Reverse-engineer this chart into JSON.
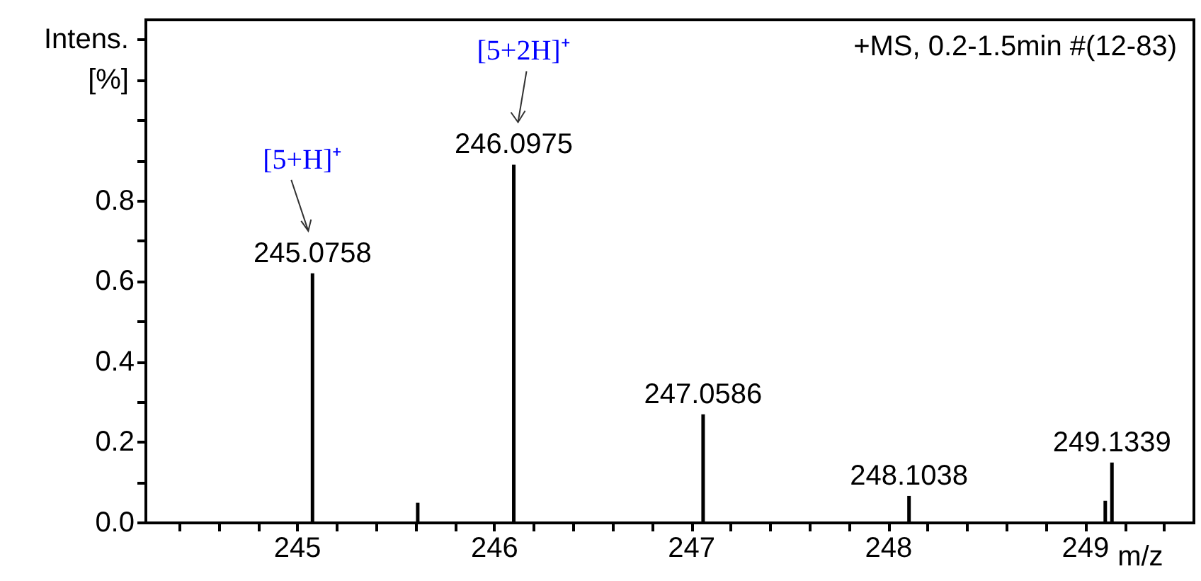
{
  "chart_data": {
    "type": "bar",
    "title": "+MS, 0.2-1.5min #(12-83)",
    "xlabel": "m/z",
    "ylabel": "Intens.\n[%]",
    "x": [
      245.0758,
      245.61,
      246.0975,
      247.0586,
      248.1038,
      249.1,
      249.1339
    ],
    "values": [
      0.62,
      0.05,
      0.89,
      0.27,
      0.067,
      0.055,
      0.15
    ],
    "color": "#000000",
    "xlim": [
      244.23,
      249.55
    ],
    "xticks": [
      {
        "value": 244.4,
        "label": null
      },
      {
        "value": 244.6,
        "label": null
      },
      {
        "value": 244.8,
        "label": null
      },
      245,
      {
        "value": 245.2,
        "label": null
      },
      {
        "value": 245.4,
        "label": null
      },
      {
        "value": 245.6,
        "label": null
      },
      {
        "value": 245.8,
        "label": null
      },
      246,
      {
        "value": 246.2,
        "label": null
      },
      {
        "value": 246.4,
        "label": null
      },
      {
        "value": 246.6,
        "label": null
      },
      {
        "value": 246.8,
        "label": null
      },
      247,
      {
        "value": 247.2,
        "label": null
      },
      {
        "value": 247.4,
        "label": null
      },
      {
        "value": 247.6,
        "label": null
      },
      {
        "value": 247.8,
        "label": null
      },
      248,
      {
        "value": 248.2,
        "label": null
      },
      {
        "value": 248.4,
        "label": null
      },
      {
        "value": 248.6,
        "label": null
      },
      {
        "value": 248.8,
        "label": null
      },
      249,
      {
        "value": 249.2,
        "label": null
      },
      {
        "value": 249.4,
        "label": null
      }
    ],
    "ylim": [
      0,
      1.25
    ],
    "yticks": [
      {
        "value": 0,
        "label": "0.0"
      },
      {
        "value": 0.1,
        "label": null
      },
      {
        "value": 0.2,
        "label": "0.2"
      },
      {
        "value": 0.3,
        "label": null
      },
      {
        "value": 0.4,
        "label": "0.4"
      },
      {
        "value": 0.5,
        "label": null
      },
      {
        "value": 0.6,
        "label": "0.6"
      },
      {
        "value": 0.7,
        "label": null
      },
      {
        "value": 0.8,
        "label": "0.8"
      },
      {
        "value": 0.9,
        "label": null
      },
      {
        "value": 1.0,
        "label": null
      },
      {
        "value": 1.1,
        "label": null
      },
      {
        "value": 1.2,
        "label": null
      }
    ],
    "annotations": [
      {
        "text": "245.0758",
        "x": 245.0758,
        "y": 0.62
      },
      {
        "text": "246.0975",
        "x": 246.0975,
        "y": 0.89
      },
      {
        "text": "247.0586",
        "x": 247.0586,
        "y": 0.27
      },
      {
        "text": "248.1038",
        "x": 248.1038,
        "y": 0.067
      },
      {
        "text": "249.1339",
        "x": 249.1339,
        "y": 0.15
      },
      "[5+H]⁺",
      "[5+2H]⁺"
    ],
    "grid": false
  }
}
